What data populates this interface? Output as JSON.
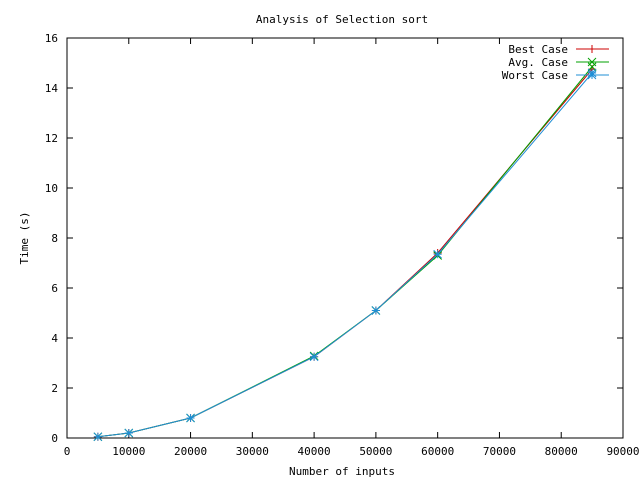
{
  "chart_data": {
    "type": "line",
    "title": "Analysis of Selection sort",
    "xlabel": "Number of inputs",
    "ylabel": "Time (s)",
    "xlim": [
      0,
      90000
    ],
    "ylim": [
      0,
      16
    ],
    "x_ticks": [
      0,
      10000,
      20000,
      30000,
      40000,
      50000,
      60000,
      70000,
      80000,
      90000
    ],
    "y_ticks": [
      0,
      2,
      4,
      6,
      8,
      10,
      12,
      14,
      16
    ],
    "grid": false,
    "legend_position": "top-right",
    "series": [
      {
        "name": "Best Case",
        "color": "#cc0000",
        "marker": "plus",
        "points": [
          [
            5000,
            0.05
          ],
          [
            10000,
            0.2
          ],
          [
            20000,
            0.8
          ],
          [
            40000,
            3.25
          ],
          [
            50000,
            5.1
          ],
          [
            60000,
            7.4
          ],
          [
            85000,
            14.75
          ]
        ]
      },
      {
        "name": "Avg. Case",
        "color": "#00a000",
        "marker": "cross",
        "points": [
          [
            5000,
            0.05
          ],
          [
            10000,
            0.2
          ],
          [
            20000,
            0.8
          ],
          [
            40000,
            3.28
          ],
          [
            50000,
            5.1
          ],
          [
            60000,
            7.3
          ],
          [
            85000,
            14.85
          ]
        ]
      },
      {
        "name": "Worst Case",
        "color": "#1f8fd6",
        "marker": "star",
        "points": [
          [
            5000,
            0.05
          ],
          [
            10000,
            0.2
          ],
          [
            20000,
            0.8
          ],
          [
            40000,
            3.25
          ],
          [
            50000,
            5.1
          ],
          [
            60000,
            7.35
          ],
          [
            85000,
            14.6
          ]
        ]
      }
    ]
  }
}
